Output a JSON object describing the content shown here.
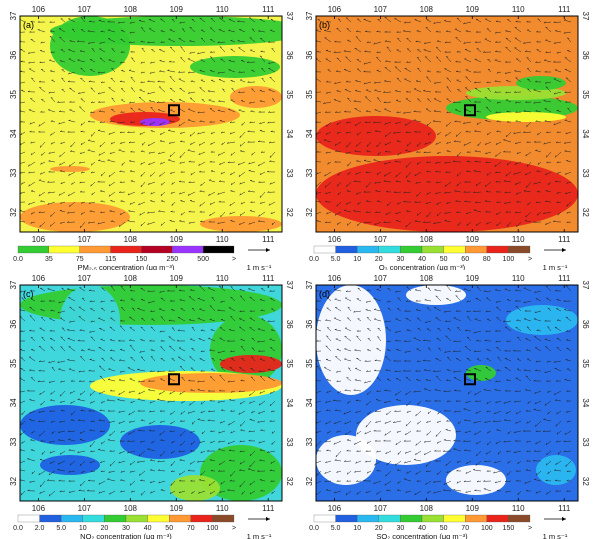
{
  "figure": {
    "type": "map-panels",
    "wind_unit": "1 m s⁻¹",
    "lon_ticks": [
      "106",
      "107",
      "108",
      "109",
      "110",
      "111"
    ],
    "lat_ticks": [
      "32",
      "33",
      "34",
      "35",
      "36",
      "37"
    ],
    "lon_range": [
      105.6,
      111.3
    ],
    "lat_range": [
      31.5,
      37.0
    ]
  },
  "chart_data": [
    {
      "type": "heatmap",
      "panel": "(a)",
      "colorbar_title": "PM₂.₅ concentration (μg m⁻³)",
      "levels": [
        "0.0",
        "35",
        "75",
        "115",
        "150",
        "250",
        "500",
        ">"
      ],
      "colors": [
        "#33cc33",
        "#ffff33",
        "#ff9933",
        "#e8241b",
        "#b40022",
        "#9933ff",
        "#000000"
      ],
      "station_box_lon": 108.95,
      "station_box_lat": 34.6,
      "background_color": "#f4f44a"
    },
    {
      "type": "heatmap",
      "panel": "(b)",
      "colorbar_title": "O₃ concentration (μg m⁻³)",
      "levels": [
        "0.0",
        "5.0",
        "10",
        "20",
        "30",
        "40",
        "50",
        "60",
        "80",
        "100",
        ">"
      ],
      "colors": [
        "#ffffff",
        "#1f5fe0",
        "#2ab8f0",
        "#33dddd",
        "#33cc33",
        "#99e033",
        "#ffff33",
        "#ff9933",
        "#e8241b",
        "#8a4a2a"
      ],
      "station_box_lon": 108.95,
      "station_box_lat": 34.6,
      "background_color": "#f28a2e"
    },
    {
      "type": "heatmap",
      "panel": "(c)",
      "colorbar_title": "NO₂ concentration (μg m⁻³)",
      "levels": [
        "0.0",
        "2.0",
        "5.0",
        "10",
        "20",
        "30",
        "40",
        "50",
        "70",
        "100",
        ">"
      ],
      "colors": [
        "#ffffff",
        "#1f5fe0",
        "#2ab8f0",
        "#33dddd",
        "#33cc33",
        "#99e033",
        "#ffff33",
        "#ff9933",
        "#e8241b",
        "#8a4a2a"
      ],
      "station_box_lon": 108.95,
      "station_box_lat": 34.6,
      "background_color": "#3fd6dc"
    },
    {
      "type": "heatmap",
      "panel": "(d)",
      "colorbar_title": "SO₂ concentration (μg m⁻³)",
      "levels": [
        "0.0",
        "5.0",
        "10",
        "20",
        "30",
        "40",
        "50",
        "70",
        "100",
        "150",
        ">"
      ],
      "colors": [
        "#ffffff",
        "#1f5fe0",
        "#2ab8f0",
        "#33dddd",
        "#33cc33",
        "#99e033",
        "#ffff33",
        "#ff9933",
        "#e8241b",
        "#8a4a2a"
      ],
      "station_box_lon": 108.95,
      "station_box_lat": 34.6,
      "background_color": "#2a6ee8"
    }
  ]
}
